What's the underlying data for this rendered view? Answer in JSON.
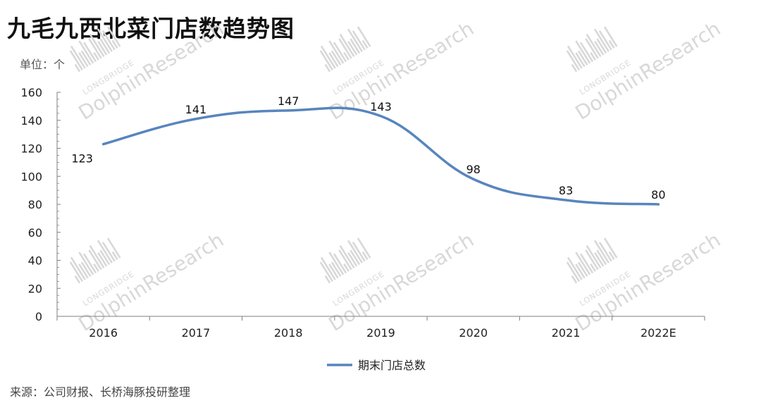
{
  "title": "九毛九西北菜门店数趋势图",
  "unit_label": "单位：个",
  "source": "来源：公司财报、长桥海豚投研整理",
  "watermark": {
    "line1": "LONGBRIDGE",
    "line2": "DolphinResearch"
  },
  "colors": {
    "line": "#5885bd",
    "axis": "#7f7f7f",
    "watermark": "#d8d8d8"
  },
  "chart_data": {
    "type": "line",
    "categories": [
      "2016",
      "2017",
      "2018",
      "2019",
      "2020",
      "2021",
      "2022E"
    ],
    "series": [
      {
        "name": "期末门店总数",
        "values": [
          123,
          141,
          147,
          143,
          98,
          83,
          80
        ]
      }
    ],
    "data_labels": [
      "123",
      "141",
      "147",
      "143",
      "98",
      "83",
      "80"
    ],
    "ylim": [
      0,
      160
    ],
    "yticks": [
      0,
      20,
      40,
      60,
      80,
      100,
      120,
      140,
      160
    ],
    "smooth": true,
    "grid": false,
    "legend_position": "bottom"
  }
}
